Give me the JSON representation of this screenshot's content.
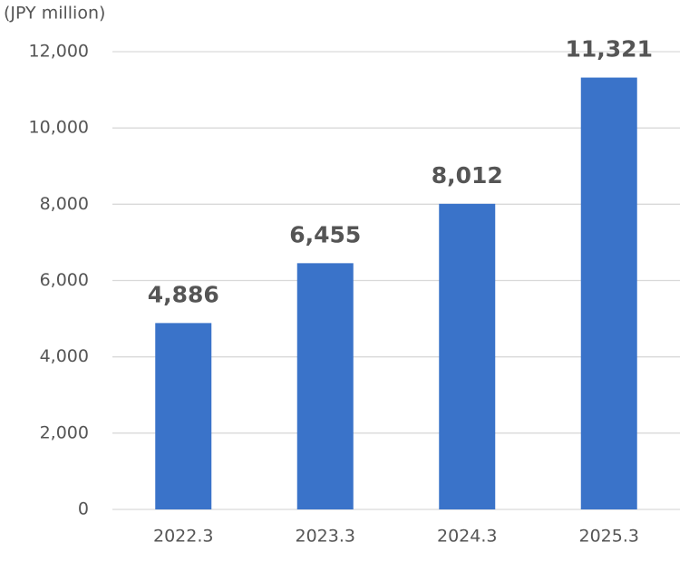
{
  "chart_data": {
    "type": "bar",
    "y_axis_label": "(JPY million)",
    "categories": [
      "2022.3",
      "2023.3",
      "2024.3",
      "2025.3"
    ],
    "values": [
      4886,
      6455,
      8012,
      11321
    ],
    "value_labels": [
      "4,886",
      "6,455",
      "8,012",
      "11,321"
    ],
    "color": "#3a73c9",
    "ylim": [
      0,
      12000
    ],
    "yticks": [
      0,
      {
        "value": 2000,
        "label": "2,000"
      },
      {
        "value": 4000,
        "label": "4,000"
      },
      {
        "value": 6000,
        "label": "6,000"
      },
      {
        "value": 8000,
        "label": "8,000"
      },
      {
        "value": 10000,
        "label": "10,000"
      },
      {
        "value": 12000,
        "label": "12,000"
      }
    ],
    "grid": true
  }
}
